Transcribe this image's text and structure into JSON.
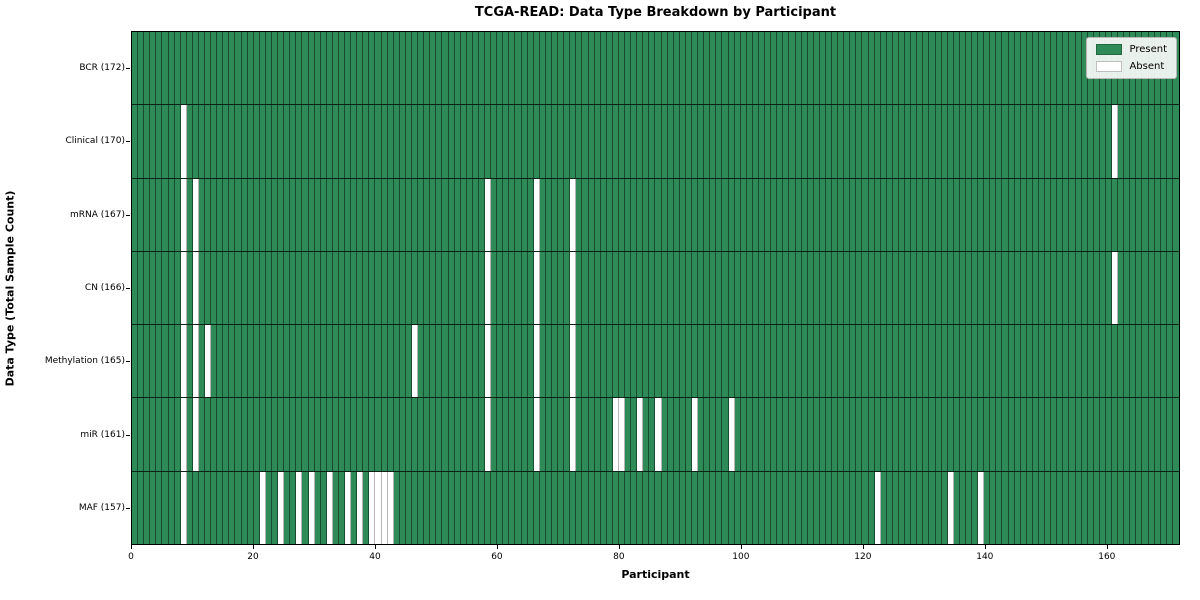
{
  "chart_data": {
    "type": "heatmap",
    "title": "TCGA-READ: Data Type Breakdown by Participant",
    "xlabel": "Participant",
    "ylabel": "Data Type (Total Sample Count)",
    "n_participants": 172,
    "x_ticks": [
      0,
      20,
      40,
      60,
      80,
      100,
      120,
      140,
      160
    ],
    "colors": {
      "present": "#2e8b57",
      "absent": "#ffffff",
      "cell_edge": "rgba(0,0,0,0.45)"
    },
    "legend": {
      "position": "upper right",
      "entries": [
        {
          "label": "Present",
          "color": "#2e8b57"
        },
        {
          "label": "Absent",
          "color": "#ffffff"
        }
      ]
    },
    "rows": [
      {
        "label": "BCR (172)",
        "total_samples": 172,
        "absent_participants": []
      },
      {
        "label": "Clinical (170)",
        "total_samples": 170,
        "absent_participants": [
          8,
          161
        ]
      },
      {
        "label": "mRNA (167)",
        "total_samples": 167,
        "absent_participants": [
          8,
          10,
          58,
          66,
          72
        ]
      },
      {
        "label": "CN (166)",
        "total_samples": 166,
        "absent_participants": [
          8,
          10,
          58,
          66,
          72,
          161
        ]
      },
      {
        "label": "Methylation (165)",
        "total_samples": 165,
        "absent_participants": [
          8,
          10,
          12,
          46,
          58,
          66,
          72
        ]
      },
      {
        "label": "miR (161)",
        "total_samples": 161,
        "absent_participants": [
          8,
          10,
          58,
          66,
          72,
          79,
          80,
          83,
          86,
          92,
          98
        ]
      },
      {
        "label": "MAF (157)",
        "total_samples": 157,
        "absent_participants": [
          8,
          21,
          24,
          27,
          29,
          32,
          35,
          37,
          39,
          40,
          41,
          42,
          122,
          134,
          139
        ]
      }
    ]
  }
}
